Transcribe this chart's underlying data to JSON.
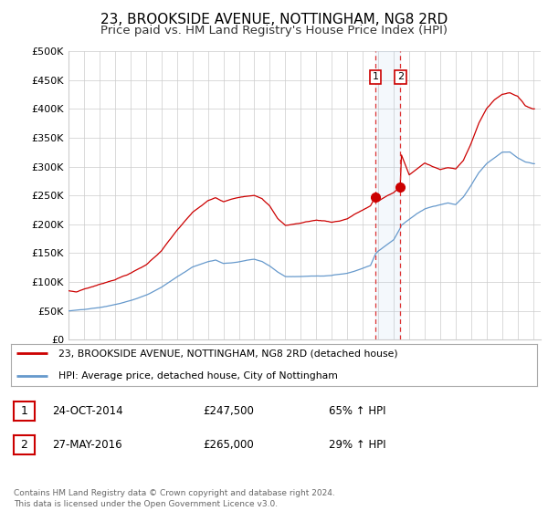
{
  "title": "23, BROOKSIDE AVENUE, NOTTINGHAM, NG8 2RD",
  "subtitle": "Price paid vs. HM Land Registry's House Price Index (HPI)",
  "title_fontsize": 11,
  "subtitle_fontsize": 9.5,
  "bg_color": "#ffffff",
  "grid_color": "#cccccc",
  "ylim": [
    0,
    500000
  ],
  "yticks": [
    0,
    50000,
    100000,
    150000,
    200000,
    250000,
    300000,
    350000,
    400000,
    450000,
    500000
  ],
  "ytick_labels": [
    "£0",
    "£50K",
    "£100K",
    "£150K",
    "£200K",
    "£250K",
    "£300K",
    "£350K",
    "£400K",
    "£450K",
    "£500K"
  ],
  "xlim_start": 1995.0,
  "xlim_end": 2025.5,
  "xtick_years": [
    1995,
    1996,
    1997,
    1998,
    1999,
    2000,
    2001,
    2002,
    2003,
    2004,
    2005,
    2006,
    2007,
    2008,
    2009,
    2010,
    2011,
    2012,
    2013,
    2014,
    2015,
    2016,
    2017,
    2018,
    2019,
    2020,
    2021,
    2022,
    2023,
    2024,
    2025
  ],
  "red_line_color": "#cc0000",
  "blue_line_color": "#6699cc",
  "vline_color": "#dd3333",
  "marker1_x": 2014.82,
  "marker2_x": 2016.42,
  "marker1_price": 247500,
  "marker2_price": 265000,
  "legend_line1": "23, BROOKSIDE AVENUE, NOTTINGHAM, NG8 2RD (detached house)",
  "legend_line2": "HPI: Average price, detached house, City of Nottingham",
  "table_row1_num": "1",
  "table_row1_date": "24-OCT-2014",
  "table_row1_price": "£247,500",
  "table_row1_hpi": "65% ↑ HPI",
  "table_row2_num": "2",
  "table_row2_date": "27-MAY-2016",
  "table_row2_price": "£265,000",
  "table_row2_hpi": "29% ↑ HPI",
  "footnote": "Contains HM Land Registry data © Crown copyright and database right 2024.\nThis data is licensed under the Open Government Licence v3.0."
}
